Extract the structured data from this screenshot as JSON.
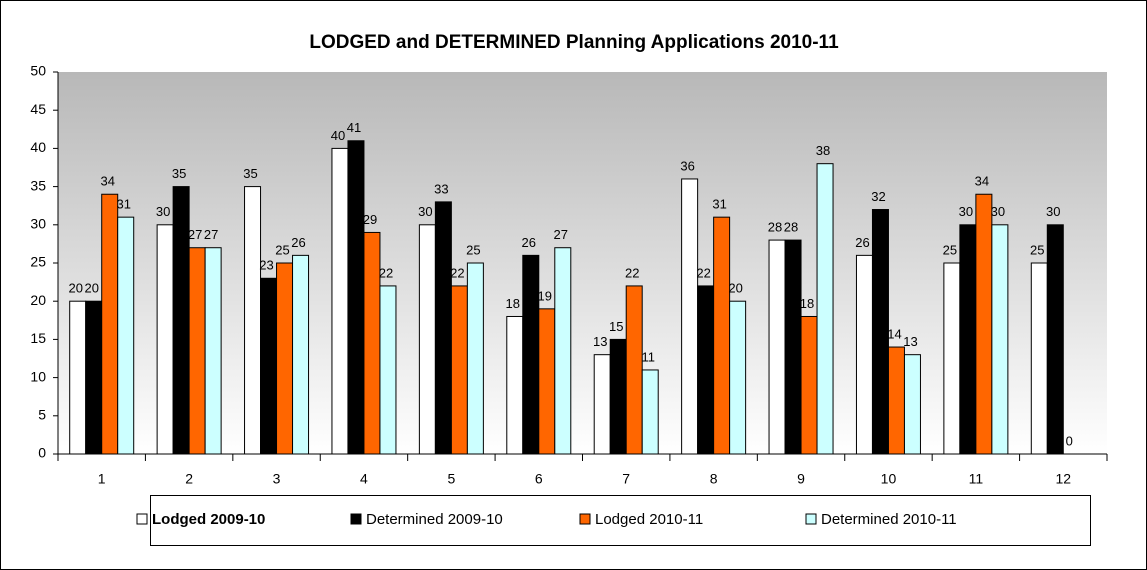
{
  "chart_data": {
    "type": "bar",
    "title": "LODGED and DETERMINED Planning Applications 2010-11",
    "categories": [
      "1",
      "2",
      "3",
      "4",
      "5",
      "6",
      "7",
      "8",
      "9",
      "10",
      "11",
      "12"
    ],
    "series": [
      {
        "name": "Lodged 2009-10",
        "color": "#ffffff",
        "values": [
          20,
          30,
          35,
          40,
          30,
          18,
          13,
          36,
          28,
          26,
          25,
          25
        ]
      },
      {
        "name": "Determined 2009-10",
        "color": "#000000",
        "values": [
          20,
          35,
          23,
          41,
          33,
          26,
          15,
          22,
          28,
          32,
          30,
          30
        ]
      },
      {
        "name": "Lodged 2010-11",
        "color": "#ff6600",
        "values": [
          34,
          27,
          25,
          29,
          22,
          19,
          22,
          31,
          18,
          14,
          34,
          0
        ]
      },
      {
        "name": "Determined 2010-11",
        "color": "#ccffff",
        "values": [
          31,
          27,
          26,
          22,
          25,
          27,
          11,
          20,
          38,
          13,
          30,
          null
        ]
      }
    ],
    "ylim": [
      0,
      50
    ],
    "yticks": [
      0,
      5,
      10,
      15,
      20,
      25,
      30,
      35,
      40,
      45,
      50
    ],
    "grid": false,
    "legend": "bottom"
  }
}
